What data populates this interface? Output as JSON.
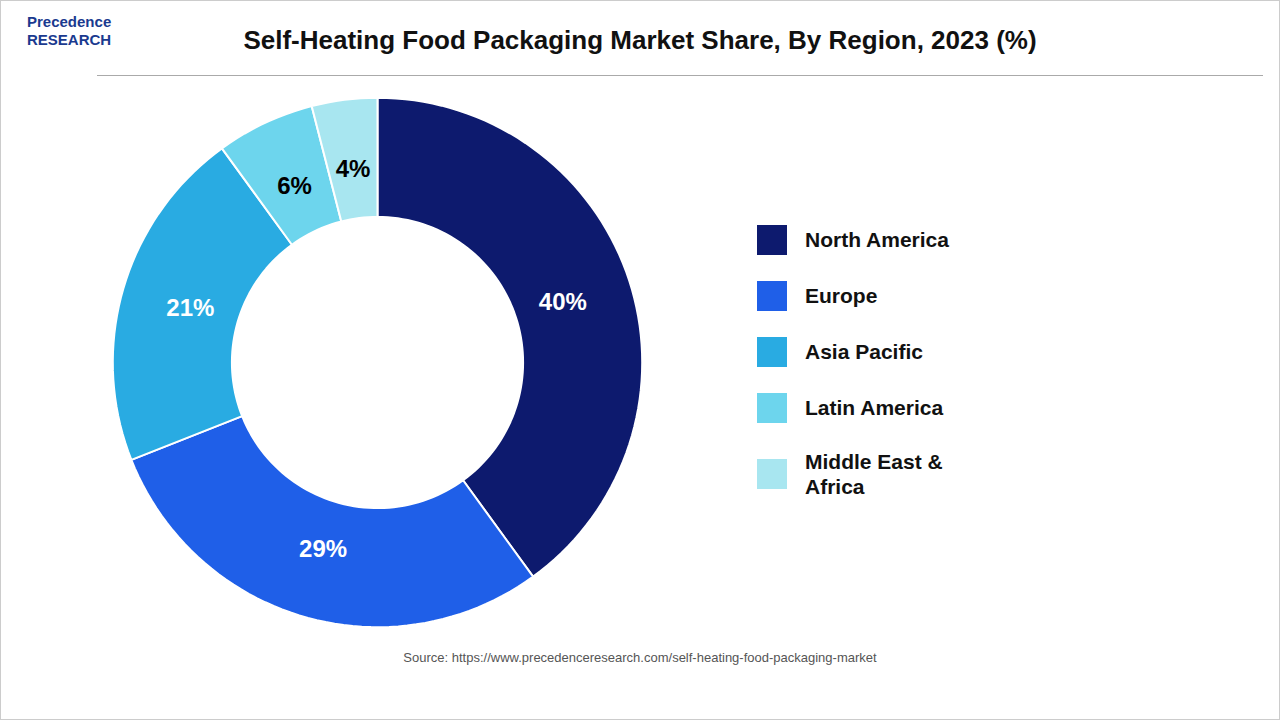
{
  "chart_data": {
    "type": "donut",
    "title": "Self-Heating Food Packaging Market Share, By Region, 2023 (%)",
    "categories": [
      "North America",
      "Europe",
      "Asia Pacific",
      "Latin America",
      "Middle East &\nAfrica"
    ],
    "values": [
      40,
      29,
      21,
      6,
      4
    ],
    "value_labels": [
      "40%",
      "29%",
      "21%",
      "6%",
      "4%"
    ],
    "colors": [
      "#0d1a6e",
      "#1f5fe8",
      "#29abe2",
      "#6dd5ed",
      "#a8e6f0"
    ],
    "label_colors": [
      "white",
      "white",
      "white",
      "black",
      "black"
    ],
    "data_labels": true,
    "legend": "right",
    "caption": "Source: https://www.precedenceresearch.com/self-heating-food-packaging-market",
    "annotations": [
      "Precedence\nRESEARCH"
    ]
  }
}
